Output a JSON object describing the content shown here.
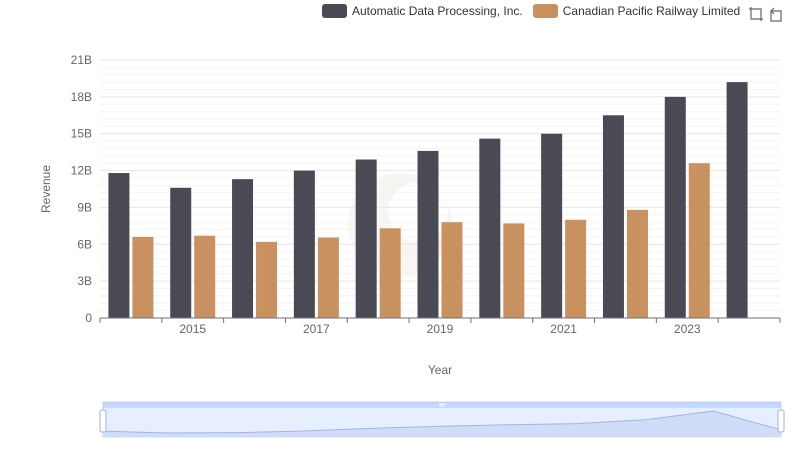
{
  "legend": [
    {
      "name": "Automatic Data Processing, Inc.",
      "color": "#4a4a55"
    },
    {
      "name": "Canadian Pacific Railway Limited",
      "color": "#c8915f"
    }
  ],
  "toolbox": [
    {
      "name": "zoom-icon"
    },
    {
      "name": "zoom-reset-icon"
    }
  ],
  "chart_data": {
    "type": "bar",
    "categories": [
      "2014",
      "2015",
      "2016",
      "2017",
      "2018",
      "2019",
      "2020",
      "2021",
      "2022",
      "2023",
      "2024"
    ],
    "x_tick_labels": [
      "2015",
      "2017",
      "2019",
      "2021",
      "2023"
    ],
    "series": [
      {
        "name": "Automatic Data Processing, Inc.",
        "color": "#4a4a55",
        "values": [
          11.8,
          10.6,
          11.3,
          12.0,
          12.9,
          13.6,
          14.6,
          15.0,
          16.5,
          18.0,
          19.2
        ]
      },
      {
        "name": "Canadian Pacific Railway Limited",
        "color": "#c8915f",
        "values": [
          6.6,
          6.7,
          6.2,
          6.55,
          7.3,
          7.8,
          7.7,
          8.0,
          8.8,
          12.6,
          null
        ]
      }
    ],
    "xlabel": "Year",
    "ylabel": "Revenue",
    "ylim": [
      0,
      21
    ],
    "y_ticks": [
      0,
      3,
      6,
      9,
      12,
      15,
      18,
      21
    ],
    "y_tick_labels": [
      "0",
      "3B",
      "6B",
      "9B",
      "12B",
      "15B",
      "18B",
      "21B"
    ],
    "grid": true,
    "legend_position": "top-right",
    "data_zoom": {
      "start_percent": 0,
      "end_percent": 100
    }
  }
}
